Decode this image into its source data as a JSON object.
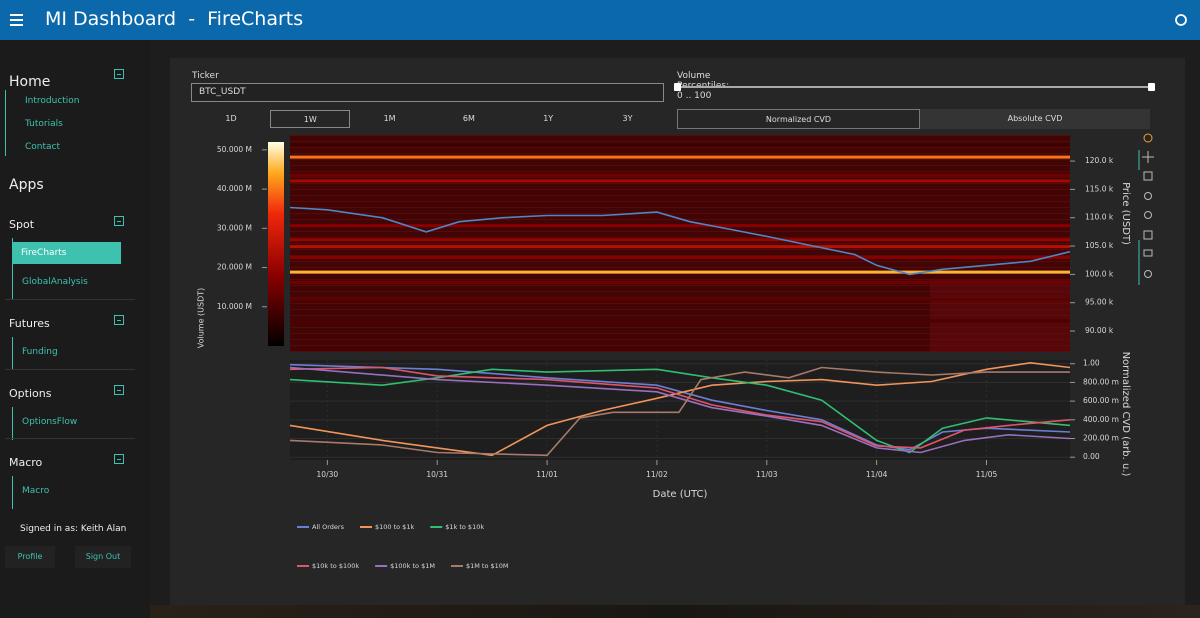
{
  "header": {
    "title": "MI Dashboard  -  FireCharts"
  },
  "sidebar": {
    "home": {
      "title": "Home",
      "items": [
        "Introduction",
        "Tutorials",
        "Contact"
      ]
    },
    "apps_title": "Apps",
    "apps": [
      {
        "title": "Spot",
        "items": [
          {
            "label": "FireCharts",
            "active": true
          },
          {
            "label": "GlobalAnalysis"
          }
        ]
      },
      {
        "title": "Futures",
        "items": [
          {
            "label": "Funding"
          }
        ]
      },
      {
        "title": "Options",
        "items": [
          {
            "label": "OptionsFlow"
          }
        ]
      },
      {
        "title": "Macro",
        "items": [
          {
            "label": "Macro"
          }
        ]
      }
    ],
    "user": "Signed in as: Keith Alan",
    "buttons": [
      "Profile",
      "Sign Out"
    ]
  },
  "controls": {
    "ticker_label": "Ticker",
    "ticker_value": "BTC_USDT",
    "percentile_label": "Volume Percentiles: 0 .. 100",
    "ranges": [
      {
        "label": "1D"
      },
      {
        "label": "1W",
        "active": true
      },
      {
        "label": "1M"
      },
      {
        "label": "6M"
      },
      {
        "label": "1Y"
      },
      {
        "label": "3Y"
      }
    ],
    "modes": [
      {
        "label": "Normalized CVD",
        "active": true
      },
      {
        "label": "Absolute CVD"
      }
    ]
  },
  "chart_data": [
    {
      "type": "heatmap",
      "ylabel": "Price (USDT)",
      "ylim": [
        86300,
        124600
      ],
      "yticks": [
        {
          "value": 90000,
          "label": "90.00 k"
        },
        {
          "value": 95000,
          "label": "95.00 k"
        },
        {
          "value": 100000,
          "label": "100.0 k"
        },
        {
          "value": 105000,
          "label": "105.0 k"
        },
        {
          "value": 110000,
          "label": "110.0 k"
        },
        {
          "value": 115000,
          "label": "115.0 k"
        },
        {
          "value": 120000,
          "label": "120.0 k"
        }
      ],
      "xlim": [
        -0.34,
        6.76
      ],
      "colorbar": {
        "title": "Volume (USDT)",
        "lim": [
          0,
          52000000
        ],
        "ticks": [
          {
            "value": 10000000,
            "label": "10.000 M"
          },
          {
            "value": 20000000,
            "label": "20.000 M"
          },
          {
            "value": 30000000,
            "label": "30.000 M"
          },
          {
            "value": 40000000,
            "label": "40.000 M"
          },
          {
            "value": 50000000,
            "label": "50.000 M"
          }
        ]
      },
      "bands": [
        {
          "price": 122800,
          "volume": 8000000
        },
        {
          "price": 120700,
          "volume": 40000000
        },
        {
          "price": 117500,
          "volume": 15000000
        },
        {
          "price": 116500,
          "volume": 22000000
        },
        {
          "price": 108600,
          "volume": 18000000
        },
        {
          "price": 106100,
          "volume": 20000000
        },
        {
          "price": 104900,
          "volume": 25000000
        },
        {
          "price": 103000,
          "volume": 18000000
        },
        {
          "price": 100400,
          "volume": 45000000
        },
        {
          "price": 98600,
          "volume": 15000000
        },
        {
          "price": 95600,
          "volume": 12000000
        },
        {
          "price": 91800,
          "volume": 10000000
        }
      ],
      "price": {
        "color": "#4f86c6",
        "x": [
          -0.34,
          0.0,
          0.5,
          0.9,
          1.2,
          1.6,
          2.0,
          2.5,
          3.0,
          3.3,
          3.6,
          4.0,
          4.4,
          4.8,
          5.0,
          5.3,
          5.6,
          6.0,
          6.4,
          6.76
        ],
        "values": [
          111800,
          111400,
          110000,
          107500,
          109300,
          110000,
          110400,
          110400,
          111000,
          109300,
          108200,
          106700,
          105100,
          103500,
          101600,
          100000,
          100900,
          101600,
          102300,
          104000
        ]
      }
    },
    {
      "type": "line",
      "xlabel": "Date (UTC)",
      "ylabel": "Normalized CVD (arb. u.)",
      "ylim": [
        -0.03,
        1.04
      ],
      "yticks": [
        {
          "value": 0,
          "label": "0.00"
        },
        {
          "value": 0.2,
          "label": "200.00 m"
        },
        {
          "value": 0.4,
          "label": "400.00 m"
        },
        {
          "value": 0.6,
          "label": "600.00 m"
        },
        {
          "value": 0.8,
          "label": "800.00 m"
        },
        {
          "value": 1,
          "label": "1.00"
        }
      ],
      "xlim": [
        -0.34,
        6.76
      ],
      "xticks": [
        {
          "value": 0,
          "label": "10/30"
        },
        {
          "value": 1,
          "label": "10/31"
        },
        {
          "value": 2,
          "label": "11/01"
        },
        {
          "value": 3,
          "label": "11/02"
        },
        {
          "value": 4,
          "label": "11/03"
        },
        {
          "value": 5,
          "label": "11/04"
        },
        {
          "value": 6,
          "label": "11/05"
        }
      ],
      "series": [
        {
          "name": "All Orders",
          "color": "#6b7fd7",
          "x": [
            -0.34,
            1.0,
            2.0,
            3.0,
            3.5,
            4.0,
            4.5,
            5.0,
            5.3,
            5.6,
            6.0,
            6.76
          ],
          "values": [
            0.99,
            0.94,
            0.85,
            0.77,
            0.61,
            0.5,
            0.4,
            0.13,
            0.08,
            0.27,
            0.31,
            0.27
          ]
        },
        {
          "name": "$100 to $1k",
          "color": "#f0955a",
          "x": [
            -0.34,
            0.5,
            1.0,
            1.5,
            2.0,
            2.5,
            3.0,
            3.5,
            4.0,
            4.5,
            5.0,
            5.5,
            6.0,
            6.4,
            6.76
          ],
          "values": [
            0.34,
            0.18,
            0.1,
            0.02,
            0.34,
            0.5,
            0.63,
            0.77,
            0.81,
            0.83,
            0.77,
            0.81,
            0.94,
            1.01,
            0.96
          ]
        },
        {
          "name": "$1k to $10k",
          "color": "#2fbf71",
          "x": [
            -0.34,
            0.5,
            1.0,
            1.5,
            2.0,
            3.0,
            3.5,
            4.0,
            4.5,
            5.0,
            5.3,
            5.6,
            6.0,
            6.76
          ],
          "values": [
            0.83,
            0.77,
            0.85,
            0.94,
            0.91,
            0.94,
            0.85,
            0.77,
            0.61,
            0.18,
            0.05,
            0.31,
            0.42,
            0.34
          ]
        },
        {
          "name": "$10k to $100k",
          "color": "#e0556a",
          "x": [
            -0.34,
            0.5,
            1.0,
            2.0,
            3.0,
            3.5,
            4.0,
            4.5,
            5.0,
            5.4,
            5.8,
            6.2,
            6.76
          ],
          "values": [
            0.94,
            0.96,
            0.87,
            0.83,
            0.74,
            0.56,
            0.45,
            0.38,
            0.12,
            0.1,
            0.29,
            0.34,
            0.4
          ]
        },
        {
          "name": "$100k to $1M",
          "color": "#9a6fc0",
          "x": [
            -0.34,
            1.0,
            2.0,
            3.0,
            3.5,
            4.0,
            4.5,
            5.0,
            5.4,
            5.8,
            6.2,
            6.76
          ],
          "values": [
            0.96,
            0.83,
            0.77,
            0.7,
            0.53,
            0.44,
            0.34,
            0.1,
            0.05,
            0.18,
            0.24,
            0.2
          ]
        },
        {
          "name": "$1M to $10M",
          "color": "#a87a6a",
          "x": [
            -0.34,
            0.5,
            1.0,
            2.0,
            2.3,
            2.6,
            3.2,
            3.4,
            3.8,
            4.2,
            4.5,
            5.0,
            5.5,
            6.0,
            6.76
          ],
          "values": [
            0.18,
            0.13,
            0.05,
            0.02,
            0.42,
            0.48,
            0.48,
            0.83,
            0.91,
            0.85,
            0.96,
            0.91,
            0.88,
            0.91,
            0.91
          ]
        }
      ]
    }
  ]
}
